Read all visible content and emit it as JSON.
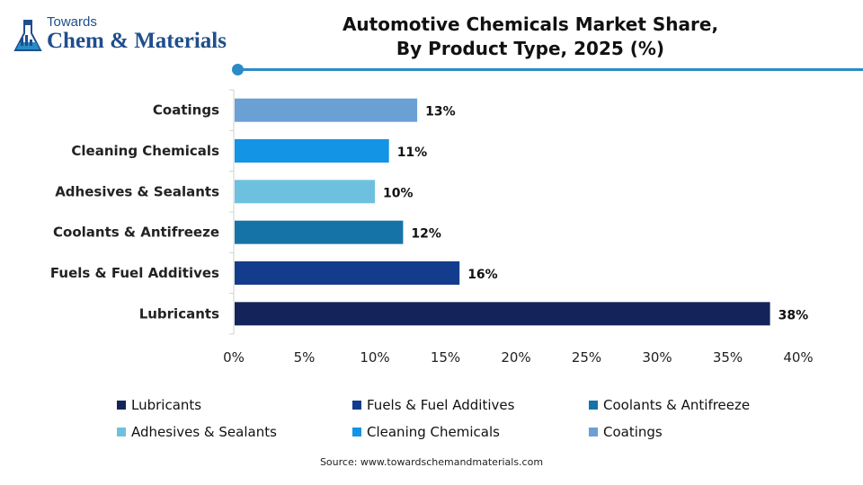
{
  "logo": {
    "line1": "Towards",
    "line2": "Chem & Materials"
  },
  "header": {
    "title_line1": "Automotive Chemicals Market Share,",
    "title_line2": "By Product Type, 2025 (%)"
  },
  "colors": {
    "Lubricants": "#14245a",
    "Fuels & Fuel Additives": "#143c8c",
    "Coolants & Antifreeze": "#1573a8",
    "Adhesives & Sealants": "#6ec1de",
    "Cleaning Chemicals": "#1494e4",
    "Coatings": "#6aa0d4",
    "accent": "#2a8bc6"
  },
  "chart_data": {
    "type": "bar",
    "orientation": "horizontal",
    "title": "Automotive Chemicals Market Share, By Product Type, 2025 (%)",
    "categories": [
      "Coatings",
      "Cleaning Chemicals",
      "Adhesives & Sealants",
      "Coolants & Antifreeze",
      "Fuels & Fuel Additives",
      "Lubricants"
    ],
    "values": [
      13,
      11,
      10,
      12,
      16,
      38
    ],
    "data_labels": [
      "13%",
      "11%",
      "10%",
      "12%",
      "16%",
      "38%"
    ],
    "xlim": [
      0,
      40
    ],
    "x_ticks": [
      0,
      5,
      10,
      15,
      20,
      25,
      30,
      35,
      40
    ],
    "x_tick_labels": [
      "0%",
      "5%",
      "10%",
      "15%",
      "20%",
      "25%",
      "30%",
      "35%",
      "40%"
    ],
    "grid": false,
    "legend_position": "bottom"
  },
  "legend": {
    "items": [
      "Lubricants",
      "Fuels & Fuel Additives",
      "Coolants & Antifreeze",
      "Adhesives & Sealants",
      "Cleaning Chemicals",
      "Coatings"
    ]
  },
  "source": "Source: www.towardschemandmaterials.com"
}
